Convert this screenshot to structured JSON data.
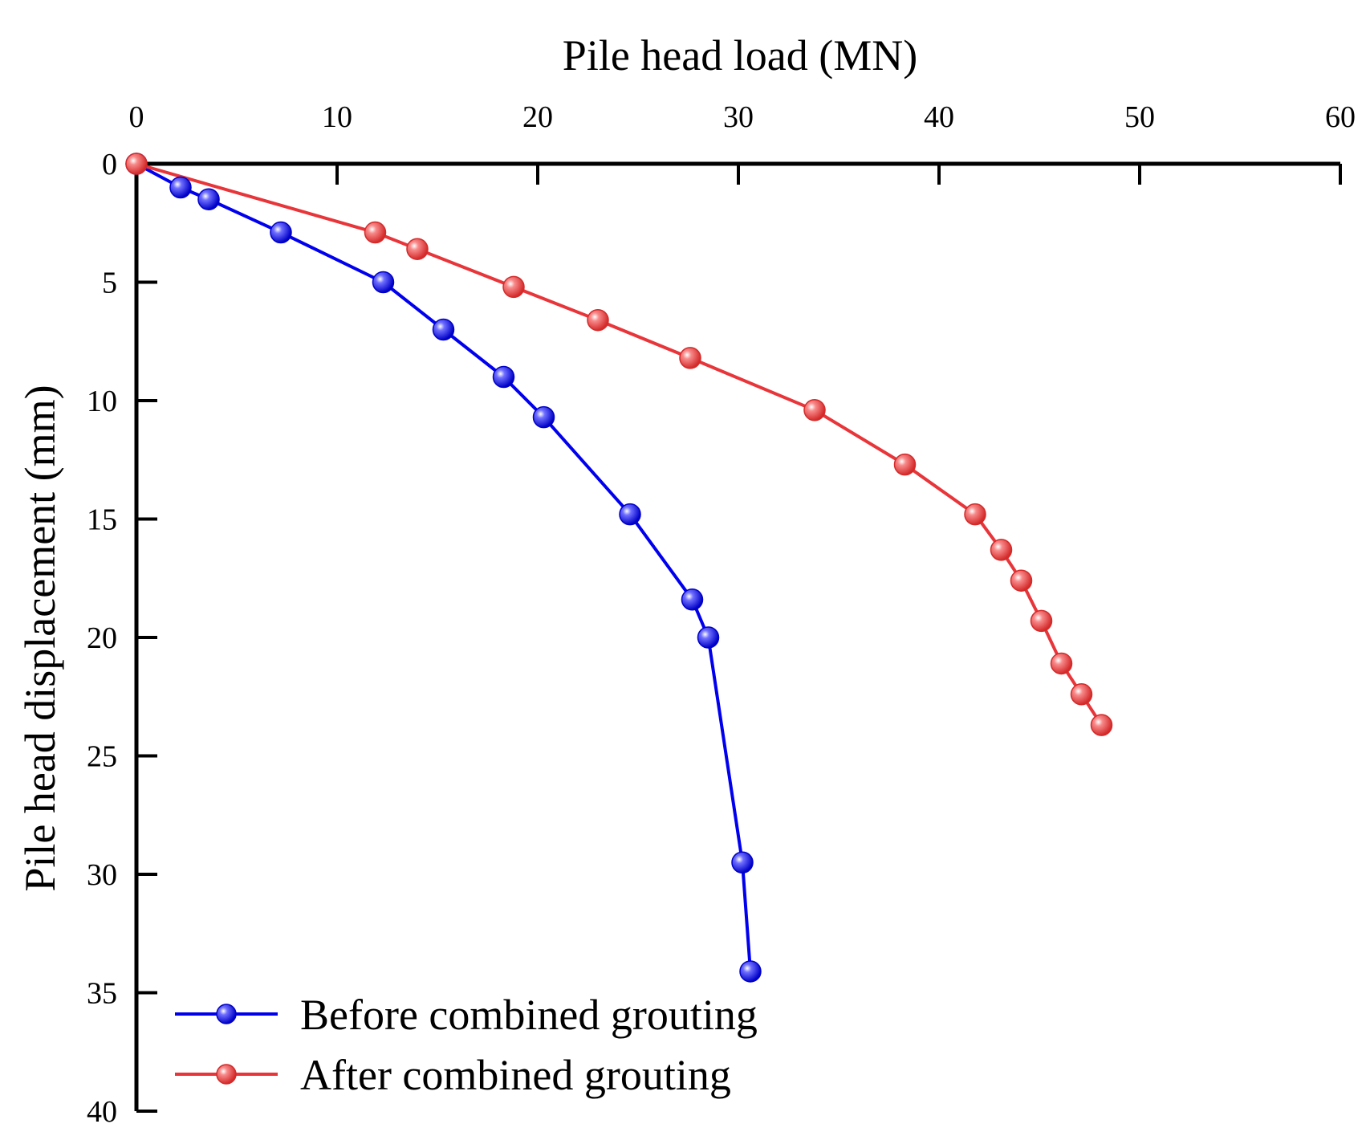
{
  "chart_data": {
    "type": "line",
    "title": "",
    "xlabel": "Pile head load (MN)",
    "ylabel": "Pile head displacement (mm)",
    "xlim": [
      0,
      60
    ],
    "ylim": [
      0,
      40
    ],
    "x_ticks": [
      0,
      10,
      20,
      30,
      40,
      50,
      60
    ],
    "y_ticks": [
      0,
      5,
      10,
      15,
      20,
      25,
      30,
      35,
      40
    ],
    "x_axis_position": "top",
    "y_axis_inverted": true,
    "grid": false,
    "legend_position": "bottom-left",
    "series": [
      {
        "name": "Before combined grouting",
        "color": "#0000ee",
        "x": [
          0,
          2.2,
          3.6,
          7.2,
          12.3,
          15.3,
          18.3,
          20.3,
          24.6,
          27.7,
          28.5,
          30.2,
          30.6
        ],
        "y": [
          0,
          1.0,
          1.5,
          2.9,
          5.0,
          7.0,
          9.0,
          10.7,
          14.8,
          18.4,
          20.0,
          29.5,
          34.1
        ]
      },
      {
        "name": "After combined grouting",
        "color": "#e8353a",
        "x": [
          0,
          11.9,
          14.0,
          18.8,
          23.0,
          27.6,
          33.8,
          38.3,
          41.8,
          43.1,
          44.1,
          45.1,
          46.1,
          47.1,
          48.1
        ],
        "y": [
          0,
          2.9,
          3.6,
          5.2,
          6.6,
          8.2,
          10.4,
          12.7,
          14.8,
          16.3,
          17.6,
          19.3,
          21.1,
          22.4,
          23.7
        ]
      }
    ]
  }
}
